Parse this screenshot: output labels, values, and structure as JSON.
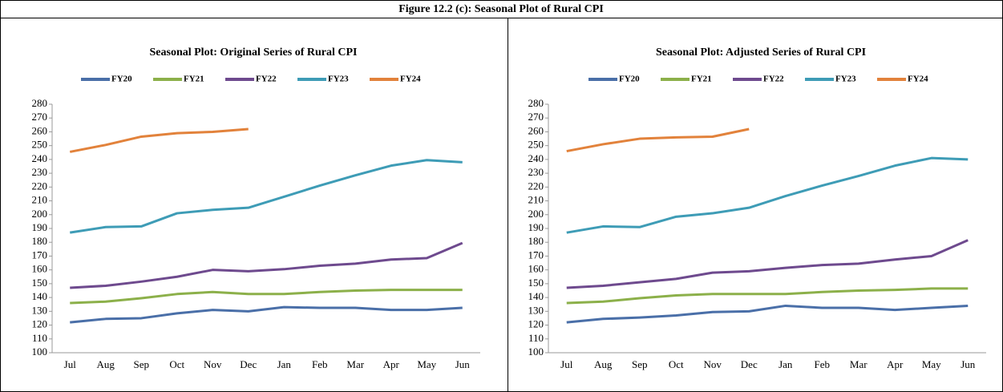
{
  "figure_title": "Figure 12.2 (c): Seasonal Plot of Rural CPI",
  "chart_data": [
    {
      "type": "line",
      "title": "Seasonal Plot: Original Series of  Rural CPI",
      "categories": [
        "Jul",
        "Aug",
        "Sep",
        "Oct",
        "Nov",
        "Dec",
        "Jan",
        "Feb",
        "Mar",
        "Apr",
        "May",
        "Jun"
      ],
      "ylim": [
        100,
        280
      ],
      "yticks": [
        100,
        110,
        120,
        130,
        140,
        150,
        160,
        170,
        180,
        190,
        200,
        210,
        220,
        230,
        240,
        250,
        260,
        270,
        280
      ],
      "legend": "top",
      "series": [
        {
          "name": "FY20",
          "color": "#4a6fa8",
          "values": [
            122,
            124.5,
            125,
            128.5,
            131,
            130,
            133,
            132.5,
            132.5,
            131,
            131,
            132.5
          ]
        },
        {
          "name": "FY21",
          "color": "#8cb04a",
          "values": [
            136,
            137,
            139.5,
            142.5,
            144,
            142.5,
            142.5,
            144,
            145,
            145.5,
            145.5,
            145.5
          ]
        },
        {
          "name": "FY22",
          "color": "#6e4a8e",
          "values": [
            147,
            148.5,
            151.5,
            155,
            160,
            159,
            160.5,
            163,
            164.5,
            167.5,
            168.5,
            179.5
          ]
        },
        {
          "name": "FY23",
          "color": "#3e9cb6",
          "values": [
            187,
            191,
            191.5,
            201,
            203.5,
            205,
            213,
            221,
            228.5,
            235.5,
            239.5,
            238
          ]
        },
        {
          "name": "FY24",
          "color": "#e2823b",
          "values": [
            245.5,
            250.5,
            256.5,
            259,
            260,
            262,
            null,
            null,
            null,
            null,
            null,
            null
          ]
        }
      ]
    },
    {
      "type": "line",
      "title": "Seasonal Plot: Adjusted Series of  Rural CPI",
      "categories": [
        "Jul",
        "Aug",
        "Sep",
        "Oct",
        "Nov",
        "Dec",
        "Jan",
        "Feb",
        "Mar",
        "Apr",
        "May",
        "Jun"
      ],
      "ylim": [
        100,
        280
      ],
      "yticks": [
        100,
        110,
        120,
        130,
        140,
        150,
        160,
        170,
        180,
        190,
        200,
        210,
        220,
        230,
        240,
        250,
        260,
        270,
        280
      ],
      "legend": "top",
      "series": [
        {
          "name": "FY20",
          "color": "#4a6fa8",
          "values": [
            122,
            124.5,
            125.5,
            127,
            129.5,
            130,
            134,
            132.5,
            132.5,
            131,
            132.5,
            134
          ]
        },
        {
          "name": "FY21",
          "color": "#8cb04a",
          "values": [
            136,
            137,
            139.5,
            141.5,
            142.5,
            142.5,
            142.5,
            144,
            145,
            145.5,
            146.5,
            146.5
          ]
        },
        {
          "name": "FY22",
          "color": "#6e4a8e",
          "values": [
            147,
            148.5,
            151,
            153.5,
            158,
            159,
            161.5,
            163.5,
            164.5,
            167.5,
            170,
            181.5
          ]
        },
        {
          "name": "FY23",
          "color": "#3e9cb6",
          "values": [
            187,
            191.5,
            191,
            198.5,
            201,
            205,
            213.5,
            221,
            228,
            235.5,
            241,
            240
          ]
        },
        {
          "name": "FY24",
          "color": "#e2823b",
          "values": [
            246,
            251,
            255,
            256,
            256.5,
            262,
            null,
            null,
            null,
            null,
            null,
            null
          ]
        }
      ]
    }
  ]
}
